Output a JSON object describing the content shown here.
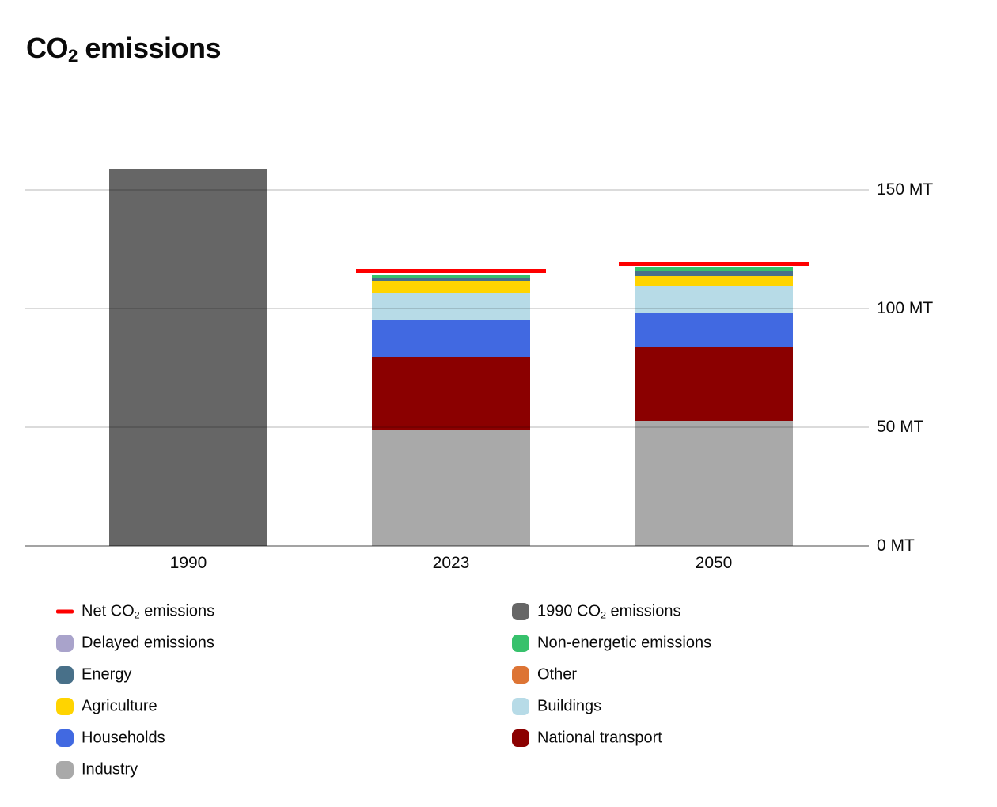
{
  "title": "CO₂ emissions",
  "title_parts": [
    {
      "t": "CO"
    },
    {
      "t": "2",
      "sub": true
    },
    {
      "t": " emissions"
    }
  ],
  "axis": {
    "unit": "MT",
    "ticks": [
      {
        "value": 0,
        "label": "0 MT"
      },
      {
        "value": 50,
        "label": "50 MT"
      },
      {
        "value": 100,
        "label": "100 MT"
      },
      {
        "value": 150,
        "label": "150 MT"
      }
    ]
  },
  "chart_data": {
    "type": "bar",
    "stacked": true,
    "title": "CO₂ emissions",
    "ylabel": "MT",
    "ylim": [
      0,
      160
    ],
    "grid": true,
    "legend_position": "bottom",
    "categories": [
      "1990",
      "2023",
      "2050"
    ],
    "series": [
      {
        "name": "1990 CO₂ emissions",
        "color": "#666666",
        "values": [
          159,
          0,
          0
        ]
      },
      {
        "name": "Industry",
        "color": "#a9a9a9",
        "values": [
          0,
          49,
          52.7
        ]
      },
      {
        "name": "National transport",
        "color": "#8b0000",
        "values": [
          0,
          30.7,
          31
        ]
      },
      {
        "name": "Households",
        "color": "#4169e1",
        "values": [
          0,
          15.3,
          14.7
        ]
      },
      {
        "name": "Buildings",
        "color": "#b7dbe7",
        "values": [
          0,
          11.7,
          11
        ]
      },
      {
        "name": "Agriculture",
        "color": "#ffd400",
        "values": [
          0,
          5,
          4.4
        ]
      },
      {
        "name": "Energy",
        "color": "#487089",
        "values": [
          0,
          1.4,
          2
        ]
      },
      {
        "name": "Non-energetic emissions",
        "color": "#37c16c",
        "values": [
          0,
          1.4,
          2
        ]
      },
      {
        "name": "Other",
        "color": "#dd7434",
        "values": [
          0,
          0,
          0
        ]
      },
      {
        "name": "Delayed emissions",
        "color": "#a9a3cb",
        "values": [
          0,
          0,
          0
        ]
      }
    ],
    "net_line": {
      "name": "Net CO₂ emissions",
      "color": "#fe0000",
      "values": [
        null,
        116,
        119
      ]
    }
  },
  "legend": {
    "columns": [
      {
        "items": [
          {
            "name": "net-co2-emissions",
            "label": "Net CO₂ emissions",
            "label_parts": [
              {
                "t": "Net CO"
              },
              {
                "t": "2",
                "sub": true
              },
              {
                "t": " emissions"
              }
            ],
            "swatch": "line",
            "color": "#fe0000"
          },
          {
            "name": "delayed-emissions",
            "label": "Delayed emissions",
            "label_parts": [
              {
                "t": "Delayed emissions"
              }
            ],
            "swatch": "square",
            "color": "#a9a3cb"
          },
          {
            "name": "energy",
            "label": "Energy",
            "label_parts": [
              {
                "t": "Energy"
              }
            ],
            "swatch": "square",
            "color": "#487089"
          },
          {
            "name": "agriculture",
            "label": "Agriculture",
            "label_parts": [
              {
                "t": "Agriculture"
              }
            ],
            "swatch": "square",
            "color": "#ffd400"
          },
          {
            "name": "households",
            "label": "Households",
            "label_parts": [
              {
                "t": "Households"
              }
            ],
            "swatch": "square",
            "color": "#4169e1"
          },
          {
            "name": "industry",
            "label": "Industry",
            "label_parts": [
              {
                "t": "Industry"
              }
            ],
            "swatch": "square",
            "color": "#a9a9a9"
          }
        ]
      },
      {
        "items": [
          {
            "name": "1990-co2-emissions",
            "label": "1990 CO₂ emissions",
            "label_parts": [
              {
                "t": "1990 CO"
              },
              {
                "t": "2",
                "sub": true
              },
              {
                "t": " emissions"
              }
            ],
            "swatch": "square",
            "color": "#666666"
          },
          {
            "name": "non-energetic-emissions",
            "label": "Non-energetic emissions",
            "label_parts": [
              {
                "t": "Non-energetic emissions"
              }
            ],
            "swatch": "square",
            "color": "#37c16c"
          },
          {
            "name": "other",
            "label": "Other",
            "label_parts": [
              {
                "t": "Other"
              }
            ],
            "swatch": "square",
            "color": "#dd7434"
          },
          {
            "name": "buildings",
            "label": "Buildings",
            "label_parts": [
              {
                "t": "Buildings"
              }
            ],
            "swatch": "square",
            "color": "#b7dbe7"
          },
          {
            "name": "national-transport",
            "label": "National transport",
            "label_parts": [
              {
                "t": "National transport"
              }
            ],
            "swatch": "square",
            "color": "#8b0000"
          }
        ]
      }
    ]
  }
}
